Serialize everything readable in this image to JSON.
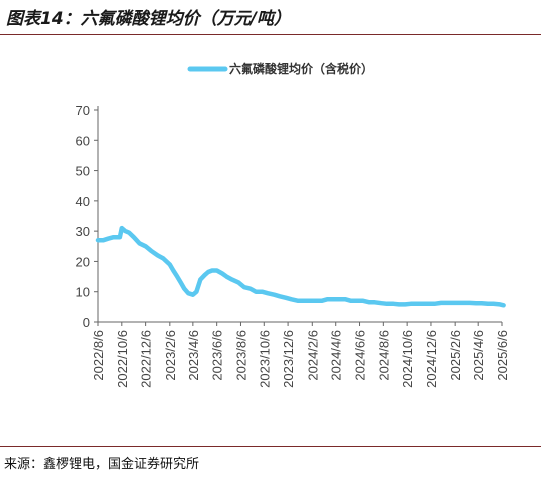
{
  "figure": {
    "title": "图表14：六氟磷酸锂均价（万元/吨）",
    "source": "来源：鑫椤锂电，国金证券研究所"
  },
  "chart_data": {
    "type": "line",
    "title": "",
    "xlabel": "",
    "ylabel": "",
    "ylim": [
      0,
      70
    ],
    "yticks": [
      0,
      10,
      20,
      30,
      40,
      50,
      60,
      70
    ],
    "grid": false,
    "legend_position": "top-center",
    "colors": {
      "series": "#5bc8f0"
    },
    "x_tick_labels": [
      "2022/8/6",
      "2022/10/6",
      "2022/12/6",
      "2023/2/6",
      "2023/4/6",
      "2023/6/6",
      "2023/8/6",
      "2023/10/6",
      "2023/12/6",
      "2024/2/6",
      "2024/4/6",
      "2024/6/6",
      "2024/8/6",
      "2024/10/6",
      "2024/12/6",
      "2025/2/6",
      "2025/4/6",
      "2025/6/6"
    ],
    "series": [
      {
        "name": "六氟磷酸锂均价（含税价）",
        "x": [
          "2022/8/6",
          "2022/8/20",
          "2022/9/1",
          "2022/9/15",
          "2022/9/25",
          "2022/10/1",
          "2022/10/6",
          "2022/10/15",
          "2022/10/25",
          "2022/11/6",
          "2022/11/20",
          "2022/12/6",
          "2022/12/20",
          "2023/1/6",
          "2023/1/20",
          "2023/2/6",
          "2023/2/15",
          "2023/2/25",
          "2023/3/6",
          "2023/3/15",
          "2023/3/25",
          "2023/4/6",
          "2023/4/15",
          "2023/4/25",
          "2023/5/6",
          "2023/5/15",
          "2023/5/25",
          "2023/6/6",
          "2023/6/20",
          "2023/7/1",
          "2023/7/15",
          "2023/8/1",
          "2023/8/15",
          "2023/9/1",
          "2023/9/15",
          "2023/10/1",
          "2023/10/15",
          "2023/11/1",
          "2023/11/15",
          "2023/12/1",
          "2023/12/15",
          "2024/1/1",
          "2024/1/15",
          "2024/2/1",
          "2024/2/15",
          "2024/3/1",
          "2024/3/15",
          "2024/4/1",
          "2024/4/15",
          "2024/5/1",
          "2024/5/15",
          "2024/6/1",
          "2024/6/15",
          "2024/7/1",
          "2024/7/15",
          "2024/8/1",
          "2024/8/15",
          "2024/9/1",
          "2024/9/15",
          "2024/10/1",
          "2024/10/15",
          "2024/11/1",
          "2024/11/15",
          "2024/12/1",
          "2024/12/15",
          "2025/1/1",
          "2025/1/15",
          "2025/2/1",
          "2025/2/15",
          "2025/3/1",
          "2025/3/15",
          "2025/4/1",
          "2025/4/15",
          "2025/5/1",
          "2025/5/15",
          "2025/6/1",
          "2025/6/10"
        ],
        "values": [
          27,
          27,
          27.5,
          28,
          28,
          28,
          31,
          30,
          29.5,
          28,
          26,
          25,
          23.5,
          22,
          21,
          19,
          17,
          15,
          13,
          11,
          9.5,
          9,
          10,
          14,
          15.5,
          16.5,
          17,
          17,
          16,
          15,
          14,
          13,
          11.5,
          11,
          10,
          10,
          9.5,
          9,
          8.5,
          8,
          7.5,
          7,
          7,
          7,
          7,
          7,
          7.5,
          7.5,
          7.5,
          7.5,
          7,
          7,
          7,
          6.5,
          6.5,
          6.2,
          6,
          6,
          5.8,
          5.8,
          6,
          6,
          6,
          6,
          6,
          6.3,
          6.3,
          6.3,
          6.3,
          6.3,
          6.3,
          6.2,
          6.2,
          6,
          6,
          5.8,
          5.5
        ]
      }
    ]
  }
}
